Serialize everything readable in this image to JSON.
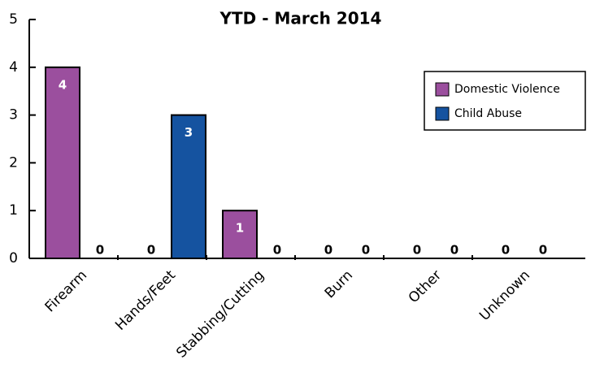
{
  "chart_data": {
    "type": "bar",
    "title": "YTD - March 2014",
    "categories": [
      "Firearm",
      "Hands/Feet",
      "Stabbing/Cutting",
      "Burn",
      "Other",
      "Unknown"
    ],
    "series": [
      {
        "name": "Domestic Violence",
        "color": "#9b4f9e",
        "values": [
          4,
          0,
          1,
          0,
          0,
          0
        ]
      },
      {
        "name": "Child Abuse",
        "color": "#1553a0",
        "values": [
          0,
          3,
          0,
          0,
          0,
          0
        ]
      }
    ],
    "ylim": [
      0,
      5
    ],
    "yticks": [
      0,
      1,
      2,
      3,
      4,
      5
    ],
    "grid": false,
    "legend": "right"
  }
}
